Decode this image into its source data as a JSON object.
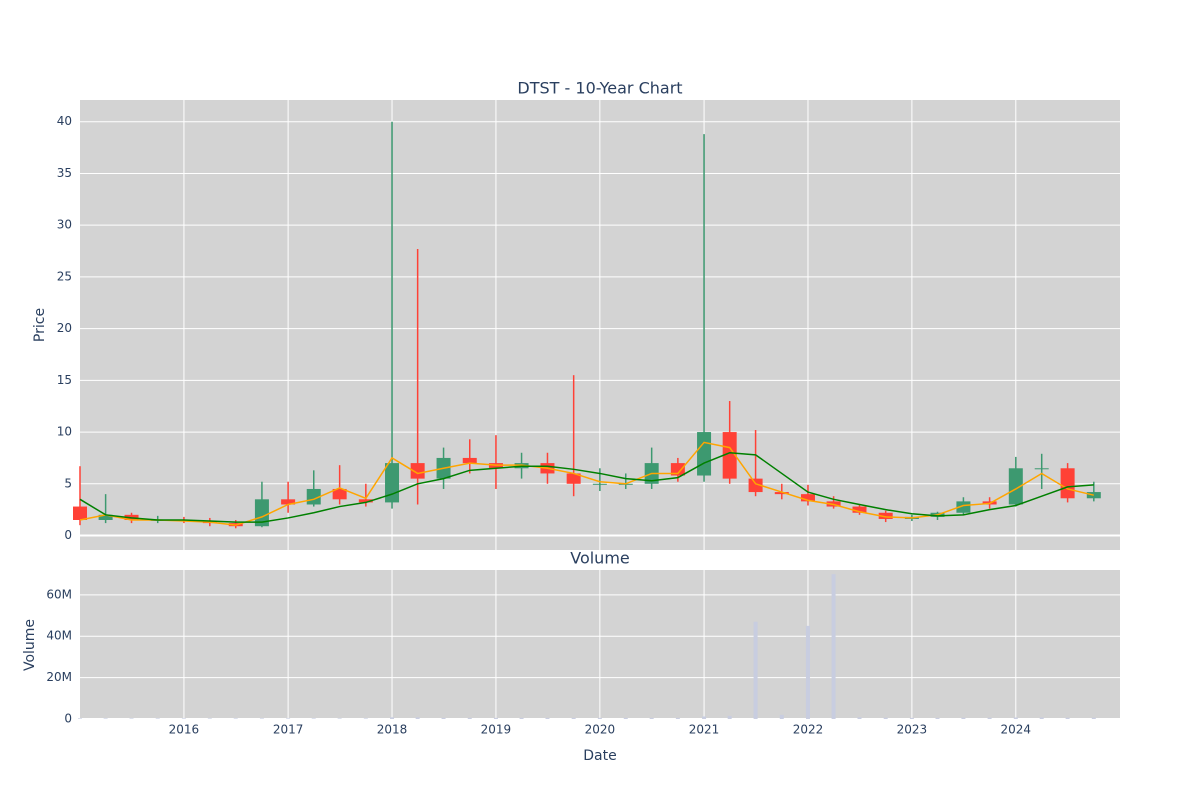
{
  "chart_data": [
    {
      "type": "candlestick",
      "title": "DTST - 10-Year Chart",
      "y_label": "Price",
      "x": [
        "2015-01-01",
        "2015-04-01",
        "2015-07-01",
        "2015-10-01",
        "2016-01-01",
        "2016-04-01",
        "2016-07-01",
        "2016-10-01",
        "2017-01-01",
        "2017-04-01",
        "2017-07-01",
        "2017-10-01",
        "2018-01-01",
        "2018-04-01",
        "2018-07-01",
        "2018-10-01",
        "2019-01-01",
        "2019-04-01",
        "2019-07-01",
        "2019-10-01",
        "2020-01-01",
        "2020-04-01",
        "2020-07-01",
        "2020-10-01",
        "2021-01-01",
        "2021-04-01",
        "2021-07-01",
        "2021-10-01",
        "2022-01-01",
        "2022-04-01",
        "2022-07-01",
        "2022-10-01",
        "2023-01-01",
        "2023-04-01",
        "2023-07-01",
        "2023-10-01",
        "2024-01-01",
        "2024-04-01",
        "2024-07-01",
        "2024-10-01"
      ],
      "open": [
        2.8,
        1.5,
        2.0,
        1.5,
        1.5,
        1.4,
        1.2,
        0.9,
        3.5,
        3.0,
        4.5,
        3.5,
        3.2,
        7.0,
        5.5,
        7.5,
        7.0,
        6.5,
        7.0,
        6.0,
        5.0,
        5.0,
        5.0,
        7.0,
        5.8,
        10.0,
        5.5,
        4.2,
        4.0,
        3.3,
        2.8,
        2.2,
        1.6,
        1.8,
        2.2,
        3.3,
        3.0,
        6.5,
        6.5,
        3.6
      ],
      "high": [
        6.7,
        4.0,
        2.2,
        1.9,
        1.8,
        1.7,
        1.5,
        5.2,
        5.2,
        6.3,
        6.8,
        5.0,
        40.0,
        27.7,
        8.5,
        9.3,
        9.7,
        8.0,
        8.0,
        15.5,
        6.5,
        6.0,
        8.5,
        7.5,
        38.8,
        13.0,
        10.2,
        5.0,
        4.9,
        3.8,
        3.0,
        2.4,
        2.0,
        2.3,
        3.7,
        3.7,
        7.6,
        7.9,
        7.0,
        5.2
      ],
      "low": [
        1.0,
        1.2,
        1.2,
        1.2,
        1.2,
        0.9,
        0.7,
        0.8,
        2.2,
        2.8,
        3.0,
        2.8,
        2.6,
        3.0,
        4.5,
        6.0,
        4.5,
        5.5,
        5.0,
        3.8,
        4.3,
        4.5,
        4.5,
        5.2,
        5.2,
        5.0,
        3.8,
        3.5,
        2.9,
        2.6,
        2.0,
        1.3,
        1.4,
        1.5,
        2.0,
        2.6,
        2.8,
        4.5,
        3.2,
        3.3
      ],
      "close": [
        1.5,
        2.0,
        1.5,
        1.5,
        1.4,
        1.2,
        0.9,
        3.5,
        3.0,
        4.5,
        3.5,
        3.2,
        7.0,
        5.5,
        7.5,
        7.0,
        6.5,
        7.0,
        6.0,
        5.0,
        5.0,
        5.0,
        7.0,
        5.8,
        10.0,
        5.5,
        4.2,
        4.0,
        3.3,
        2.8,
        2.2,
        1.6,
        1.8,
        2.2,
        3.3,
        3.0,
        6.5,
        6.5,
        3.6,
        4.2
      ],
      "increasing_color": "#3d9970",
      "decreasing_color": "#ff4136",
      "lines": [
        {
          "color": "#ffa500",
          "values": [
            1.5,
            2.0,
            1.5,
            1.5,
            1.4,
            1.3,
            1.0,
            1.8,
            3.0,
            3.5,
            4.6,
            3.6,
            7.5,
            6.0,
            6.5,
            7.0,
            6.8,
            6.8,
            6.5,
            6.0,
            5.2,
            5.0,
            6.0,
            6.0,
            9.0,
            8.5,
            5.0,
            4.2,
            3.4,
            3.0,
            2.3,
            1.8,
            1.7,
            2.0,
            2.9,
            3.1,
            4.5,
            6.0,
            4.5,
            3.9
          ]
        },
        {
          "color": "#008000",
          "values": [
            3.5,
            2.0,
            1.7,
            1.5,
            1.5,
            1.4,
            1.3,
            1.3,
            1.7,
            2.2,
            2.8,
            3.2,
            4.0,
            5.0,
            5.5,
            6.3,
            6.5,
            6.7,
            6.7,
            6.4,
            6.0,
            5.5,
            5.3,
            5.6,
            7.0,
            8.0,
            7.8,
            6.0,
            4.2,
            3.5,
            3.0,
            2.5,
            2.1,
            1.9,
            2.0,
            2.5,
            2.9,
            3.8,
            4.7,
            4.9
          ]
        }
      ],
      "xlim": [
        "2015-01-01",
        "2025-01-01"
      ],
      "ylim": [
        -1.4,
        42.1
      ],
      "yticks": [
        0,
        5,
        10,
        15,
        20,
        25,
        30,
        35,
        40
      ],
      "grid": true
    },
    {
      "type": "bar",
      "title": "Volume",
      "y_label": "Volume",
      "x_label": "Date",
      "x": [
        "2015-01-01",
        "2015-04-01",
        "2015-07-01",
        "2015-10-01",
        "2016-01-01",
        "2016-04-01",
        "2016-07-01",
        "2016-10-01",
        "2017-01-01",
        "2017-04-01",
        "2017-07-01",
        "2017-10-01",
        "2018-01-01",
        "2018-04-01",
        "2018-07-01",
        "2018-10-01",
        "2019-01-01",
        "2019-04-01",
        "2019-07-01",
        "2019-10-01",
        "2020-01-01",
        "2020-04-01",
        "2020-07-01",
        "2020-10-01",
        "2021-01-01",
        "2021-04-01",
        "2021-07-01",
        "2021-10-01",
        "2022-01-01",
        "2022-04-01",
        "2022-07-01",
        "2022-10-01",
        "2023-01-01",
        "2023-04-01",
        "2023-07-01",
        "2023-10-01",
        "2024-01-01",
        "2024-04-01",
        "2024-07-01",
        "2024-10-01"
      ],
      "values": [
        300000,
        300000,
        300000,
        300000,
        300000,
        300000,
        300000,
        300000,
        300000,
        300000,
        300000,
        300000,
        800000,
        800000,
        500000,
        500000,
        500000,
        500000,
        500000,
        500000,
        500000,
        500000,
        500000,
        500000,
        1200000,
        1500000,
        47000000,
        2000000,
        45000000,
        70000000,
        800000,
        600000,
        500000,
        500000,
        600000,
        600000,
        700000,
        700000,
        600000,
        600000
      ],
      "color": "#c8cde0",
      "xlim": [
        "2015-01-01",
        "2025-01-01"
      ],
      "ylim": [
        -500000,
        72000000
      ],
      "yticks": [
        0,
        {
          "value": 20000000,
          "label": "20M"
        },
        {
          "value": 40000000,
          "label": "40M"
        },
        {
          "value": 60000000,
          "label": "60M"
        }
      ],
      "xticks": [
        {
          "value": "2016-01-01",
          "label": "2016"
        },
        {
          "value": "2017-01-01",
          "label": "2017"
        },
        {
          "value": "2018-01-01",
          "label": "2018"
        },
        {
          "value": "2019-01-01",
          "label": "2019"
        },
        {
          "value": "2020-01-01",
          "label": "2020"
        },
        {
          "value": "2021-01-01",
          "label": "2021"
        },
        {
          "value": "2022-01-01",
          "label": "2022"
        },
        {
          "value": "2023-01-01",
          "label": "2023"
        },
        {
          "value": "2024-01-01",
          "label": "2024"
        }
      ],
      "grid": true
    }
  ]
}
